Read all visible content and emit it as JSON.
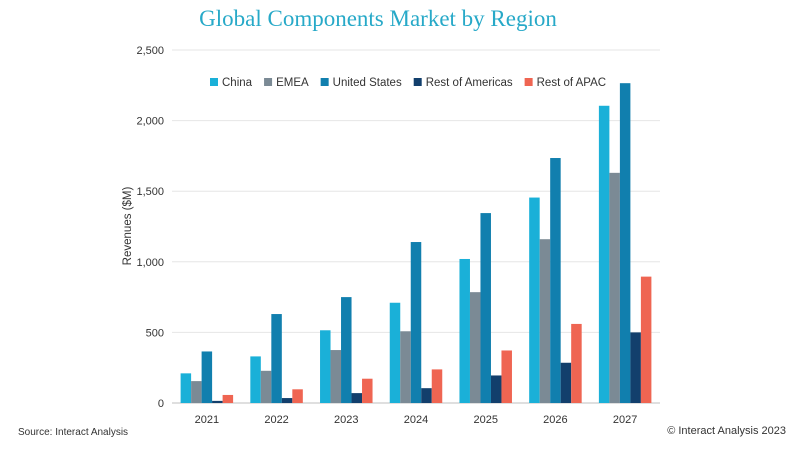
{
  "chart_data": {
    "type": "bar",
    "title": "Global Components Market by Region",
    "xlabel": "",
    "ylabel": "Revenues ($M)",
    "ylim": [
      0,
      2500
    ],
    "yticks": [
      0,
      500,
      1000,
      1500,
      2000,
      2500
    ],
    "ytick_labels": [
      "0",
      "500",
      "1,000",
      "1,500",
      "2,000",
      "2,500"
    ],
    "categories": [
      "2021",
      "2022",
      "2023",
      "2024",
      "2025",
      "2026",
      "2027"
    ],
    "grid": true,
    "legend_position": "top",
    "series": [
      {
        "name": "China",
        "color": "#1ab0d8",
        "values": [
          210,
          330,
          515,
          710,
          1020,
          1455,
          2105
        ]
      },
      {
        "name": "EMEA",
        "color": "#7b8a95",
        "values": [
          155,
          228,
          375,
          508,
          785,
          1160,
          1630
        ]
      },
      {
        "name": "United States",
        "color": "#117fae",
        "values": [
          365,
          630,
          750,
          1140,
          1345,
          1735,
          2265
        ]
      },
      {
        "name": "Rest of Americas",
        "color": "#123f6c",
        "values": [
          15,
          35,
          70,
          105,
          195,
          285,
          500
        ]
      },
      {
        "name": "Rest of APAC",
        "color": "#ef6552",
        "values": [
          57,
          97,
          172,
          238,
          372,
          560,
          895
        ]
      }
    ]
  },
  "footer": {
    "source": "Source: Interact Analysis",
    "copyright": "© Interact Analysis 2023"
  }
}
